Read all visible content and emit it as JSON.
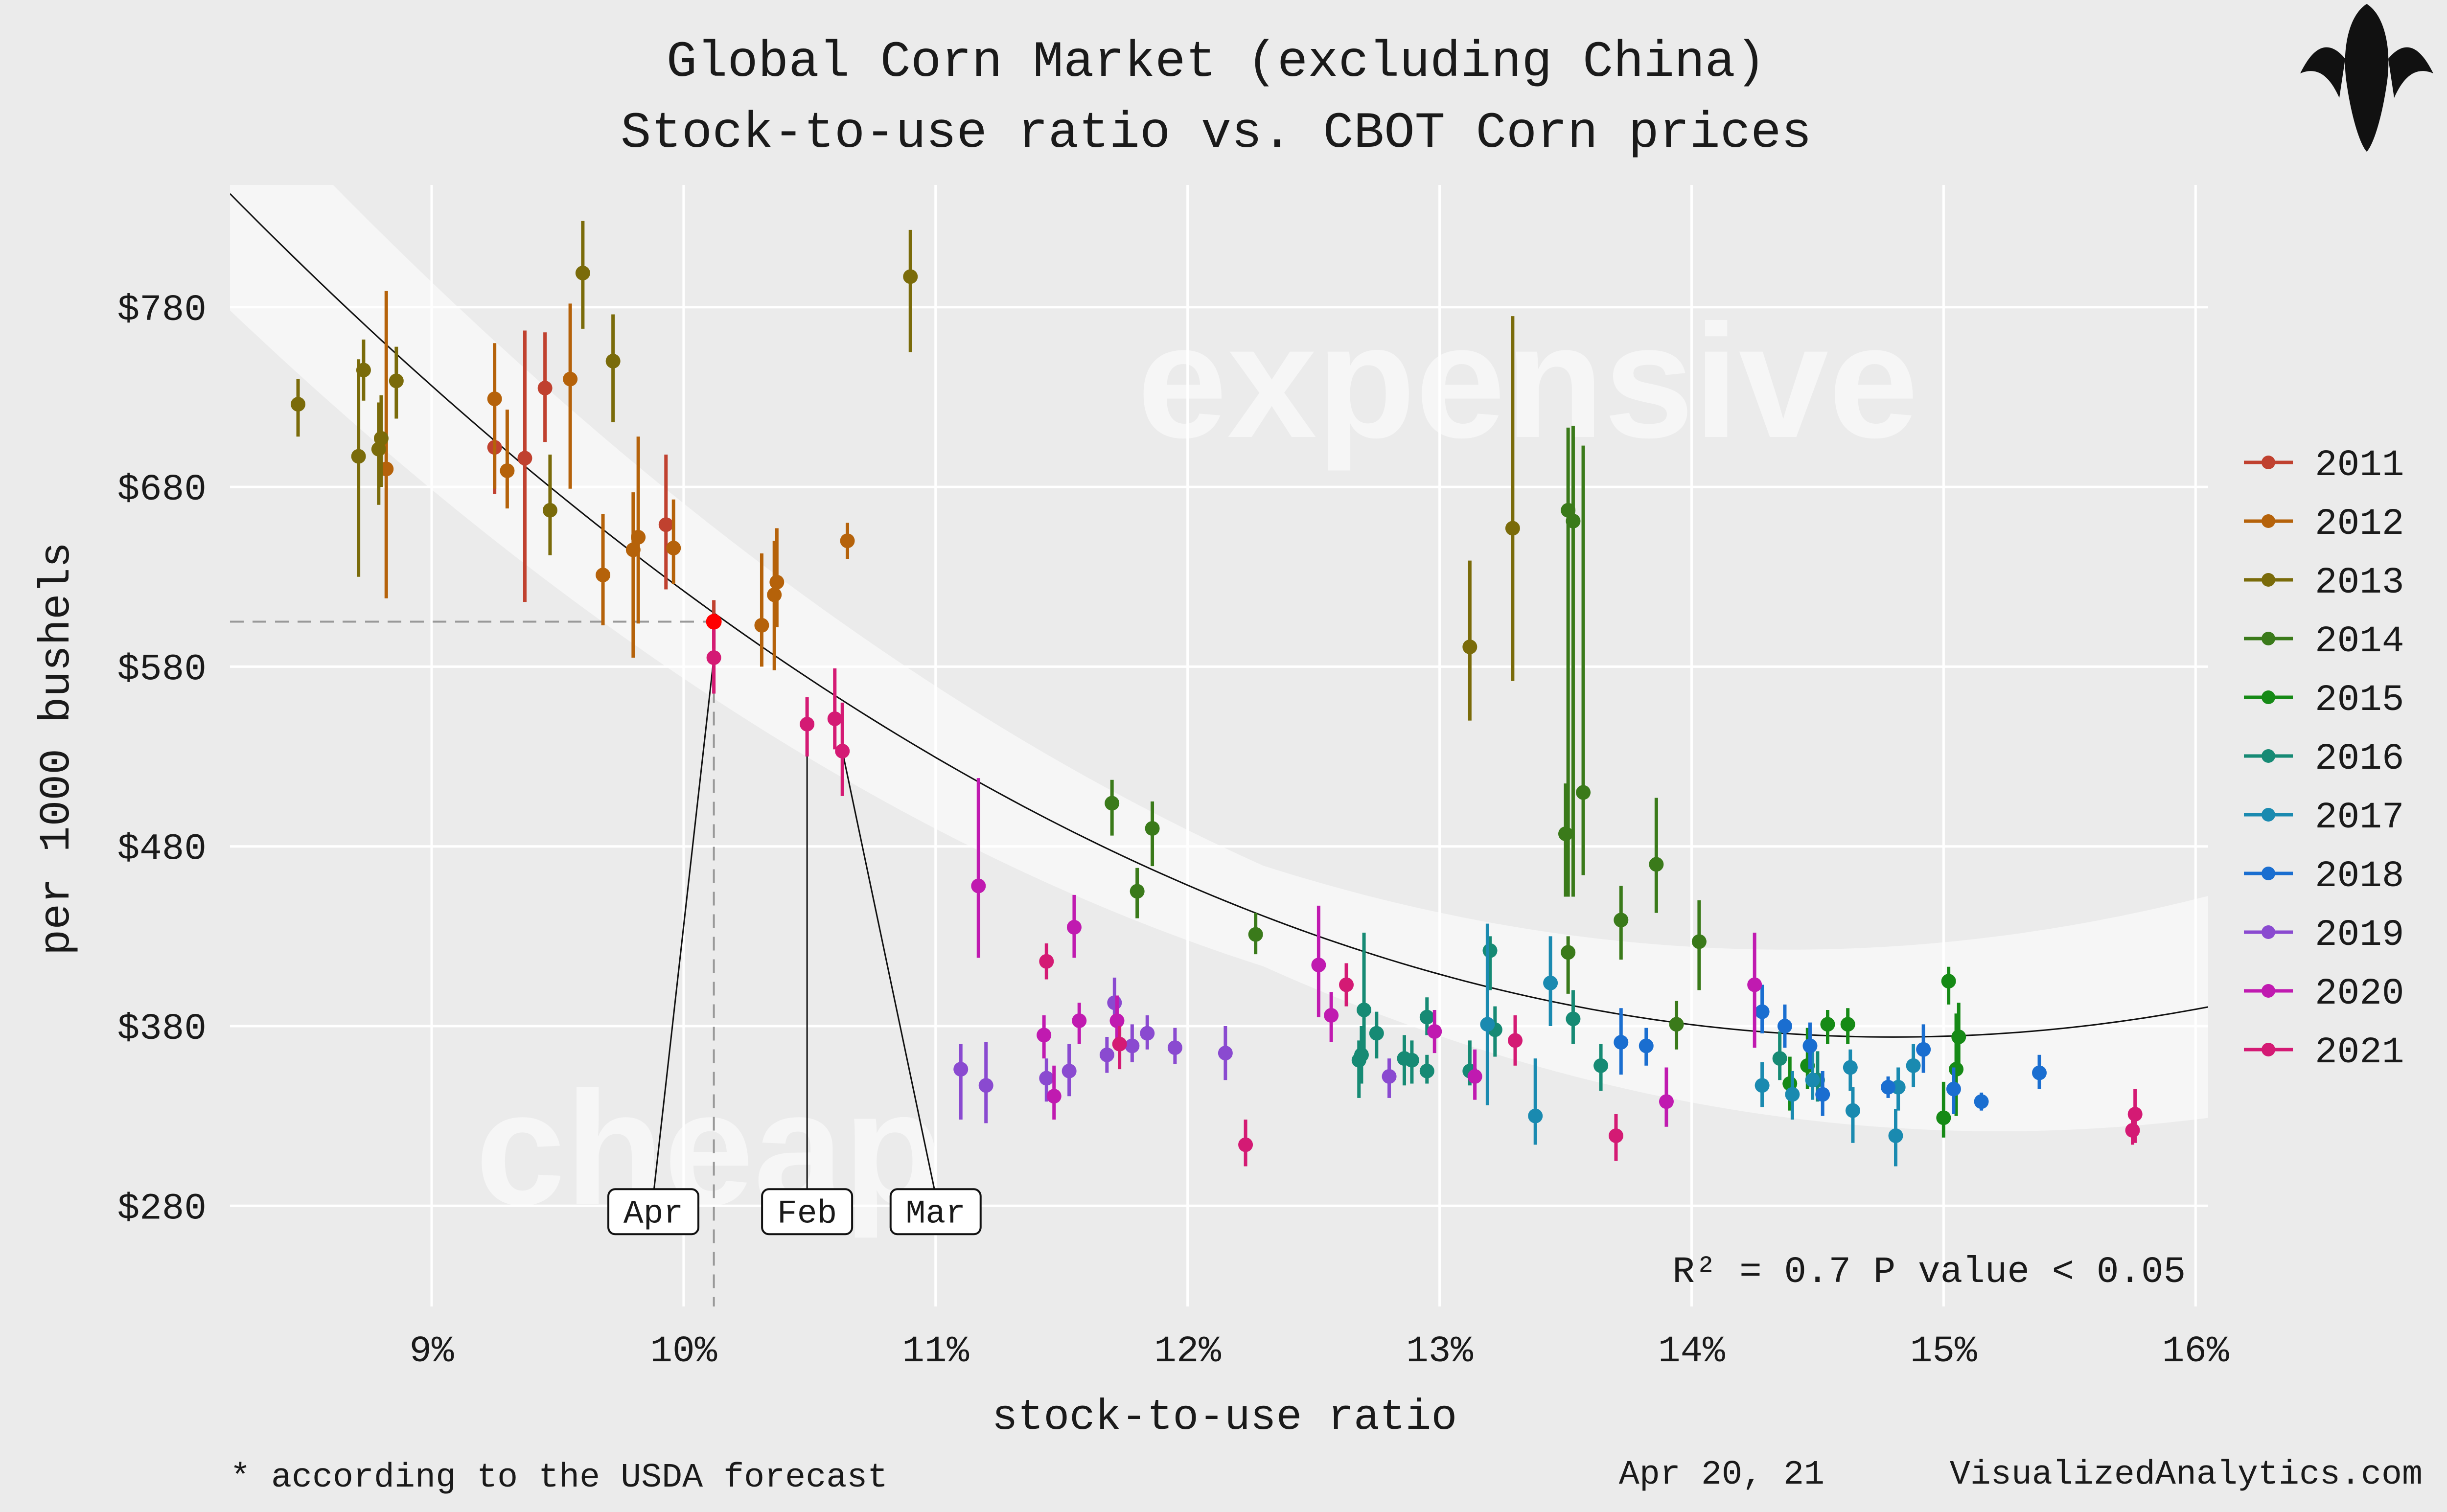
{
  "chart_data": {
    "type": "scatter",
    "title": "Global Corn Market (excluding China)",
    "subtitle": "Stock-to-use ratio vs. CBOT Corn prices",
    "xlabel": "stock-to-use ratio",
    "ylabel": "per 1000 bushels",
    "xlim": [
      8.2,
      16.05
    ],
    "ylim": [
      224,
      848
    ],
    "x_ticks": [
      9,
      10,
      11,
      12,
      13,
      14,
      15,
      16
    ],
    "x_tick_labels": [
      "9%",
      "10%",
      "11%",
      "12%",
      "13%",
      "14%",
      "15%",
      "16%"
    ],
    "y_ticks": [
      280,
      380,
      480,
      580,
      680,
      780
    ],
    "y_tick_labels": [
      "$280",
      "$380",
      "$480",
      "$580",
      "$680",
      "$780"
    ],
    "grid": true,
    "legend_position": "right",
    "watermarks": [
      "expensive",
      "cheap"
    ],
    "stats_text": {
      "r2": "R² = 0.7",
      "pvalue": "P value < 0.05"
    },
    "fit_curve": {
      "type": "quadratic",
      "x": [
        8.2,
        9,
        10,
        11,
        12,
        13,
        14,
        14.5,
        15,
        16.05
      ],
      "y": [
        838,
        737,
        627,
        534,
        461,
        407,
        375,
        370,
        372,
        398
      ]
    },
    "highlight": {
      "x": 10.12,
      "y": 605,
      "color": "#ff0000"
    },
    "annotations": [
      {
        "label": "Apr",
        "x": 10.12,
        "y": 585,
        "box_x": 9.88
      },
      {
        "label": "Feb",
        "x": 10.49,
        "y": 548,
        "box_x": 10.49
      },
      {
        "label": "Mar",
        "x": 10.63,
        "y": 533,
        "box_x": 11.0
      }
    ],
    "series": [
      {
        "name": "2011",
        "color": "#c0412f",
        "points": [
          {
            "x": 9.25,
            "y": 702,
            "lo": 676,
            "hi": 730
          },
          {
            "x": 9.37,
            "y": 696,
            "lo": 616,
            "hi": 767
          },
          {
            "x": 9.45,
            "y": 735,
            "lo": 705,
            "hi": 766
          },
          {
            "x": 9.93,
            "y": 659,
            "lo": 623,
            "hi": 698
          },
          {
            "x": 10.12,
            "y": 605,
            "lo": 590,
            "hi": 617
          }
        ]
      },
      {
        "name": "2012",
        "color": "#b5620a",
        "points": [
          {
            "x": 8.82,
            "y": 690,
            "lo": 618,
            "hi": 789
          },
          {
            "x": 9.25,
            "y": 729,
            "lo": 679,
            "hi": 760
          },
          {
            "x": 9.3,
            "y": 689,
            "lo": 668,
            "hi": 723
          },
          {
            "x": 9.55,
            "y": 740,
            "lo": 679,
            "hi": 782
          },
          {
            "x": 9.68,
            "y": 631,
            "lo": 603,
            "hi": 665
          },
          {
            "x": 9.8,
            "y": 645,
            "lo": 585,
            "hi": 677
          },
          {
            "x": 9.82,
            "y": 652,
            "lo": 604,
            "hi": 708
          },
          {
            "x": 9.96,
            "y": 646,
            "lo": 626,
            "hi": 673
          },
          {
            "x": 10.31,
            "y": 603,
            "lo": 580,
            "hi": 643
          },
          {
            "x": 10.36,
            "y": 620,
            "lo": 578,
            "hi": 650
          },
          {
            "x": 10.37,
            "y": 627,
            "lo": 602,
            "hi": 657
          },
          {
            "x": 10.65,
            "y": 650,
            "lo": 640,
            "hi": 660
          }
        ]
      },
      {
        "name": "2013",
        "color": "#7a6b0a",
        "points": [
          {
            "x": 8.47,
            "y": 726,
            "lo": 708,
            "hi": 740
          },
          {
            "x": 8.71,
            "y": 697,
            "lo": 630,
            "hi": 751
          },
          {
            "x": 8.73,
            "y": 745,
            "lo": 728,
            "hi": 762
          },
          {
            "x": 8.79,
            "y": 701,
            "lo": 670,
            "hi": 727
          },
          {
            "x": 8.8,
            "y": 707,
            "lo": 680,
            "hi": 731
          },
          {
            "x": 8.86,
            "y": 739,
            "lo": 718,
            "hi": 758
          },
          {
            "x": 9.47,
            "y": 667,
            "lo": 642,
            "hi": 698
          },
          {
            "x": 9.6,
            "y": 799,
            "lo": 768,
            "hi": 828
          },
          {
            "x": 9.72,
            "y": 750,
            "lo": 716,
            "hi": 776
          },
          {
            "x": 10.9,
            "y": 797,
            "lo": 755,
            "hi": 823
          },
          {
            "x": 13.12,
            "y": 591,
            "lo": 550,
            "hi": 639
          },
          {
            "x": 13.29,
            "y": 657,
            "lo": 572,
            "hi": 775
          }
        ]
      },
      {
        "name": "2014",
        "color": "#3a7a1a",
        "points": [
          {
            "x": 11.7,
            "y": 504,
            "lo": 486,
            "hi": 517
          },
          {
            "x": 11.8,
            "y": 455,
            "lo": 440,
            "hi": 468
          },
          {
            "x": 11.86,
            "y": 490,
            "lo": 469,
            "hi": 505
          },
          {
            "x": 12.27,
            "y": 431,
            "lo": 420,
            "hi": 443
          },
          {
            "x": 13.5,
            "y": 487,
            "lo": 452,
            "hi": 515
          },
          {
            "x": 13.51,
            "y": 667,
            "lo": 452,
            "hi": 713
          },
          {
            "x": 13.51,
            "y": 421,
            "lo": 398,
            "hi": 430
          },
          {
            "x": 13.53,
            "y": 661,
            "lo": 452,
            "hi": 714
          },
          {
            "x": 13.57,
            "y": 510,
            "lo": 464,
            "hi": 703
          },
          {
            "x": 13.72,
            "y": 439,
            "lo": 417,
            "hi": 458
          },
          {
            "x": 13.86,
            "y": 470,
            "lo": 443,
            "hi": 507
          },
          {
            "x": 13.94,
            "y": 381,
            "lo": 367,
            "hi": 394
          },
          {
            "x": 14.03,
            "y": 427,
            "lo": 400,
            "hi": 450
          }
        ]
      },
      {
        "name": "2015",
        "color": "#168a16",
        "points": [
          {
            "x": 14.39,
            "y": 348,
            "lo": 333,
            "hi": 363
          },
          {
            "x": 14.46,
            "y": 358,
            "lo": 345,
            "hi": 379
          },
          {
            "x": 14.54,
            "y": 381,
            "lo": 370,
            "hi": 389
          },
          {
            "x": 14.62,
            "y": 381,
            "lo": 370,
            "hi": 390
          },
          {
            "x": 15.0,
            "y": 329,
            "lo": 318,
            "hi": 349
          },
          {
            "x": 15.02,
            "y": 405,
            "lo": 392,
            "hi": 413
          },
          {
            "x": 15.05,
            "y": 356,
            "lo": 330,
            "hi": 387
          },
          {
            "x": 15.06,
            "y": 374,
            "lo": 358,
            "hi": 393
          }
        ]
      },
      {
        "name": "2016",
        "color": "#168a74",
        "points": [
          {
            "x": 12.68,
            "y": 361,
            "lo": 340,
            "hi": 372
          },
          {
            "x": 12.69,
            "y": 364,
            "lo": 348,
            "hi": 380
          },
          {
            "x": 12.7,
            "y": 389,
            "lo": 364,
            "hi": 432
          },
          {
            "x": 12.75,
            "y": 376,
            "lo": 362,
            "hi": 388
          },
          {
            "x": 12.86,
            "y": 362,
            "lo": 347,
            "hi": 375
          },
          {
            "x": 12.89,
            "y": 361,
            "lo": 348,
            "hi": 372
          },
          {
            "x": 12.95,
            "y": 355,
            "lo": 348,
            "hi": 364
          },
          {
            "x": 12.95,
            "y": 385,
            "lo": 375,
            "hi": 396
          },
          {
            "x": 13.12,
            "y": 355,
            "lo": 347,
            "hi": 372
          },
          {
            "x": 13.2,
            "y": 422,
            "lo": 400,
            "hi": 430
          },
          {
            "x": 13.22,
            "y": 378,
            "lo": 363,
            "hi": 391
          },
          {
            "x": 13.53,
            "y": 384,
            "lo": 370,
            "hi": 400
          },
          {
            "x": 13.64,
            "y": 358,
            "lo": 344,
            "hi": 370
          },
          {
            "x": 14.35,
            "y": 362,
            "lo": 350,
            "hi": 377
          },
          {
            "x": 14.5,
            "y": 350,
            "lo": 338,
            "hi": 366
          }
        ]
      },
      {
        "name": "2017",
        "color": "#1a8ab0",
        "points": [
          {
            "x": 13.19,
            "y": 381,
            "lo": 336,
            "hi": 437
          },
          {
            "x": 13.38,
            "y": 330,
            "lo": 314,
            "hi": 362
          },
          {
            "x": 13.44,
            "y": 404,
            "lo": 380,
            "hi": 430
          },
          {
            "x": 14.28,
            "y": 347,
            "lo": 335,
            "hi": 360
          },
          {
            "x": 14.4,
            "y": 342,
            "lo": 328,
            "hi": 355
          },
          {
            "x": 14.48,
            "y": 350,
            "lo": 339,
            "hi": 366
          },
          {
            "x": 14.63,
            "y": 357,
            "lo": 344,
            "hi": 367
          },
          {
            "x": 14.64,
            "y": 333,
            "lo": 315,
            "hi": 346
          },
          {
            "x": 14.81,
            "y": 319,
            "lo": 302,
            "hi": 334
          },
          {
            "x": 14.82,
            "y": 346,
            "lo": 333,
            "hi": 357
          },
          {
            "x": 14.88,
            "y": 358,
            "lo": 346,
            "hi": 370
          }
        ]
      },
      {
        "name": "2018",
        "color": "#1a6ed0",
        "points": [
          {
            "x": 13.72,
            "y": 371,
            "lo": 353,
            "hi": 390
          },
          {
            "x": 13.82,
            "y": 369,
            "lo": 358,
            "hi": 379
          },
          {
            "x": 14.28,
            "y": 388,
            "lo": 376,
            "hi": 403
          },
          {
            "x": 14.37,
            "y": 380,
            "lo": 368,
            "hi": 392
          },
          {
            "x": 14.47,
            "y": 369,
            "lo": 356,
            "hi": 382
          },
          {
            "x": 14.52,
            "y": 342,
            "lo": 330,
            "hi": 355
          },
          {
            "x": 14.78,
            "y": 346,
            "lo": 340,
            "hi": 352
          },
          {
            "x": 14.92,
            "y": 367,
            "lo": 354,
            "hi": 381
          },
          {
            "x": 15.04,
            "y": 345,
            "lo": 331,
            "hi": 357
          },
          {
            "x": 15.15,
            "y": 338,
            "lo": 333,
            "hi": 343
          },
          {
            "x": 15.38,
            "y": 354,
            "lo": 345,
            "hi": 364
          }
        ]
      },
      {
        "name": "2019",
        "color": "#8a4ad0",
        "points": [
          {
            "x": 11.1,
            "y": 356,
            "lo": 328,
            "hi": 370
          },
          {
            "x": 11.2,
            "y": 347,
            "lo": 326,
            "hi": 371
          },
          {
            "x": 11.44,
            "y": 351,
            "lo": 338,
            "hi": 362
          },
          {
            "x": 11.53,
            "y": 355,
            "lo": 341,
            "hi": 370
          },
          {
            "x": 11.68,
            "y": 364,
            "lo": 354,
            "hi": 374
          },
          {
            "x": 11.71,
            "y": 393,
            "lo": 380,
            "hi": 407
          },
          {
            "x": 11.78,
            "y": 369,
            "lo": 360,
            "hi": 381
          },
          {
            "x": 11.84,
            "y": 376,
            "lo": 367,
            "hi": 386
          },
          {
            "x": 11.95,
            "y": 368,
            "lo": 359,
            "hi": 379
          },
          {
            "x": 12.15,
            "y": 365,
            "lo": 350,
            "hi": 380
          },
          {
            "x": 12.8,
            "y": 352,
            "lo": 340,
            "hi": 362
          }
        ]
      },
      {
        "name": "2020",
        "color": "#c01ab0",
        "points": [
          {
            "x": 11.17,
            "y": 458,
            "lo": 418,
            "hi": 518
          },
          {
            "x": 11.43,
            "y": 375,
            "lo": 362,
            "hi": 386
          },
          {
            "x": 11.47,
            "y": 341,
            "lo": 328,
            "hi": 358
          },
          {
            "x": 11.55,
            "y": 435,
            "lo": 418,
            "hi": 453
          },
          {
            "x": 11.57,
            "y": 383,
            "lo": 370,
            "hi": 393
          },
          {
            "x": 11.72,
            "y": 383,
            "lo": 370,
            "hi": 397
          },
          {
            "x": 12.52,
            "y": 414,
            "lo": 385,
            "hi": 447
          },
          {
            "x": 12.57,
            "y": 386,
            "lo": 371,
            "hi": 399
          },
          {
            "x": 12.98,
            "y": 377,
            "lo": 365,
            "hi": 389
          },
          {
            "x": 13.14,
            "y": 352,
            "lo": 339,
            "hi": 367
          },
          {
            "x": 13.9,
            "y": 338,
            "lo": 324,
            "hi": 357
          },
          {
            "x": 14.25,
            "y": 403,
            "lo": 368,
            "hi": 432
          }
        ]
      },
      {
        "name": "2021",
        "color": "#d41a74",
        "points": [
          {
            "x": 10.12,
            "y": 585,
            "lo": 565,
            "hi": 605
          },
          {
            "x": 10.49,
            "y": 548,
            "lo": 530,
            "hi": 563
          },
          {
            "x": 10.6,
            "y": 551,
            "lo": 534,
            "hi": 579
          },
          {
            "x": 10.63,
            "y": 533,
            "lo": 508,
            "hi": 560
          },
          {
            "x": 11.44,
            "y": 416,
            "lo": 406,
            "hi": 426
          },
          {
            "x": 11.73,
            "y": 370,
            "lo": 356,
            "hi": 380
          },
          {
            "x": 12.23,
            "y": 314,
            "lo": 302,
            "hi": 328
          },
          {
            "x": 12.63,
            "y": 403,
            "lo": 391,
            "hi": 415
          },
          {
            "x": 13.3,
            "y": 372,
            "lo": 358,
            "hi": 386
          },
          {
            "x": 13.7,
            "y": 319,
            "lo": 305,
            "hi": 331
          },
          {
            "x": 15.75,
            "y": 322,
            "lo": 314,
            "hi": 334
          },
          {
            "x": 15.76,
            "y": 331,
            "lo": 315,
            "hi": 345
          }
        ]
      }
    ]
  },
  "footer": {
    "note": "* according to the USDA forecast",
    "date": "Apr 20, 21",
    "site": "VisualizedAnalytics.com"
  },
  "logo": {
    "icon": "corn-logo-icon"
  }
}
